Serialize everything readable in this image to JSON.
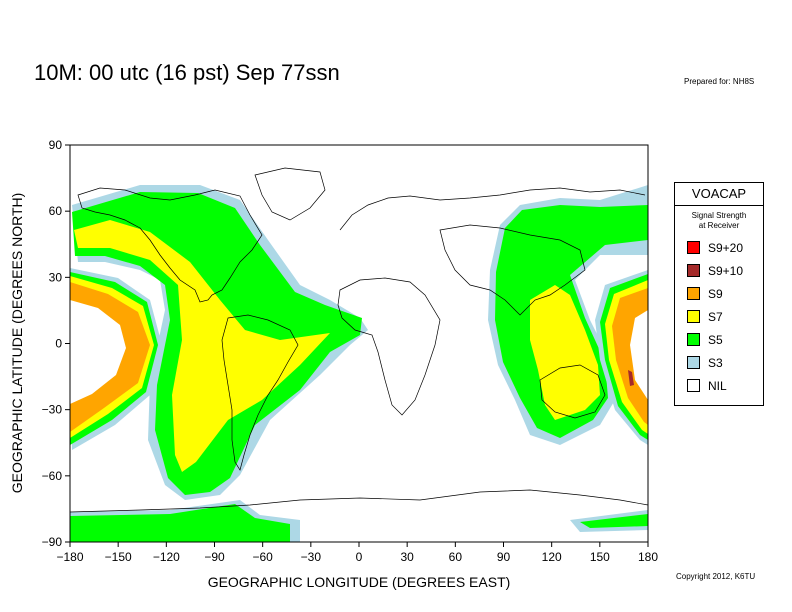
{
  "header": {
    "title": "10M:  00 utc (16 pst) Sep 77ssn",
    "prepared": "Prepared for: NH8S",
    "copyright": "Copyright 2012, K6TU"
  },
  "map": {
    "x_axis_label": "GEOGRAPHIC LONGITUDE (DEGREES EAST)",
    "y_axis_label": "GEOGRAPHIC LATITUDE (DEGREES NORTH)",
    "x_ticks": [
      "−180",
      "−150",
      "−120",
      "−90",
      "−60",
      "−30",
      "0",
      "30",
      "60",
      "90",
      "120",
      "150",
      "180"
    ],
    "y_ticks": [
      "90",
      "60",
      "30",
      "0",
      "−30",
      "−60",
      "−90"
    ],
    "lon_range": [
      -180,
      180
    ],
    "lat_range": [
      -90,
      90
    ]
  },
  "legend": {
    "title": "VOACAP",
    "subtitle_line1": "Signal Strength",
    "subtitle_line2": "at Receiver",
    "items": [
      {
        "label": "S9+20",
        "color": "#ff0000"
      },
      {
        "label": "S9+10",
        "color": "#a52a2a"
      },
      {
        "label": "S9",
        "color": "#ffa500"
      },
      {
        "label": "S7",
        "color": "#ffff00"
      },
      {
        "label": "S5",
        "color": "#00ff00"
      },
      {
        "label": "S3",
        "color": "#add8e6"
      },
      {
        "label": "NIL",
        "color": "#ffffff"
      }
    ]
  }
}
